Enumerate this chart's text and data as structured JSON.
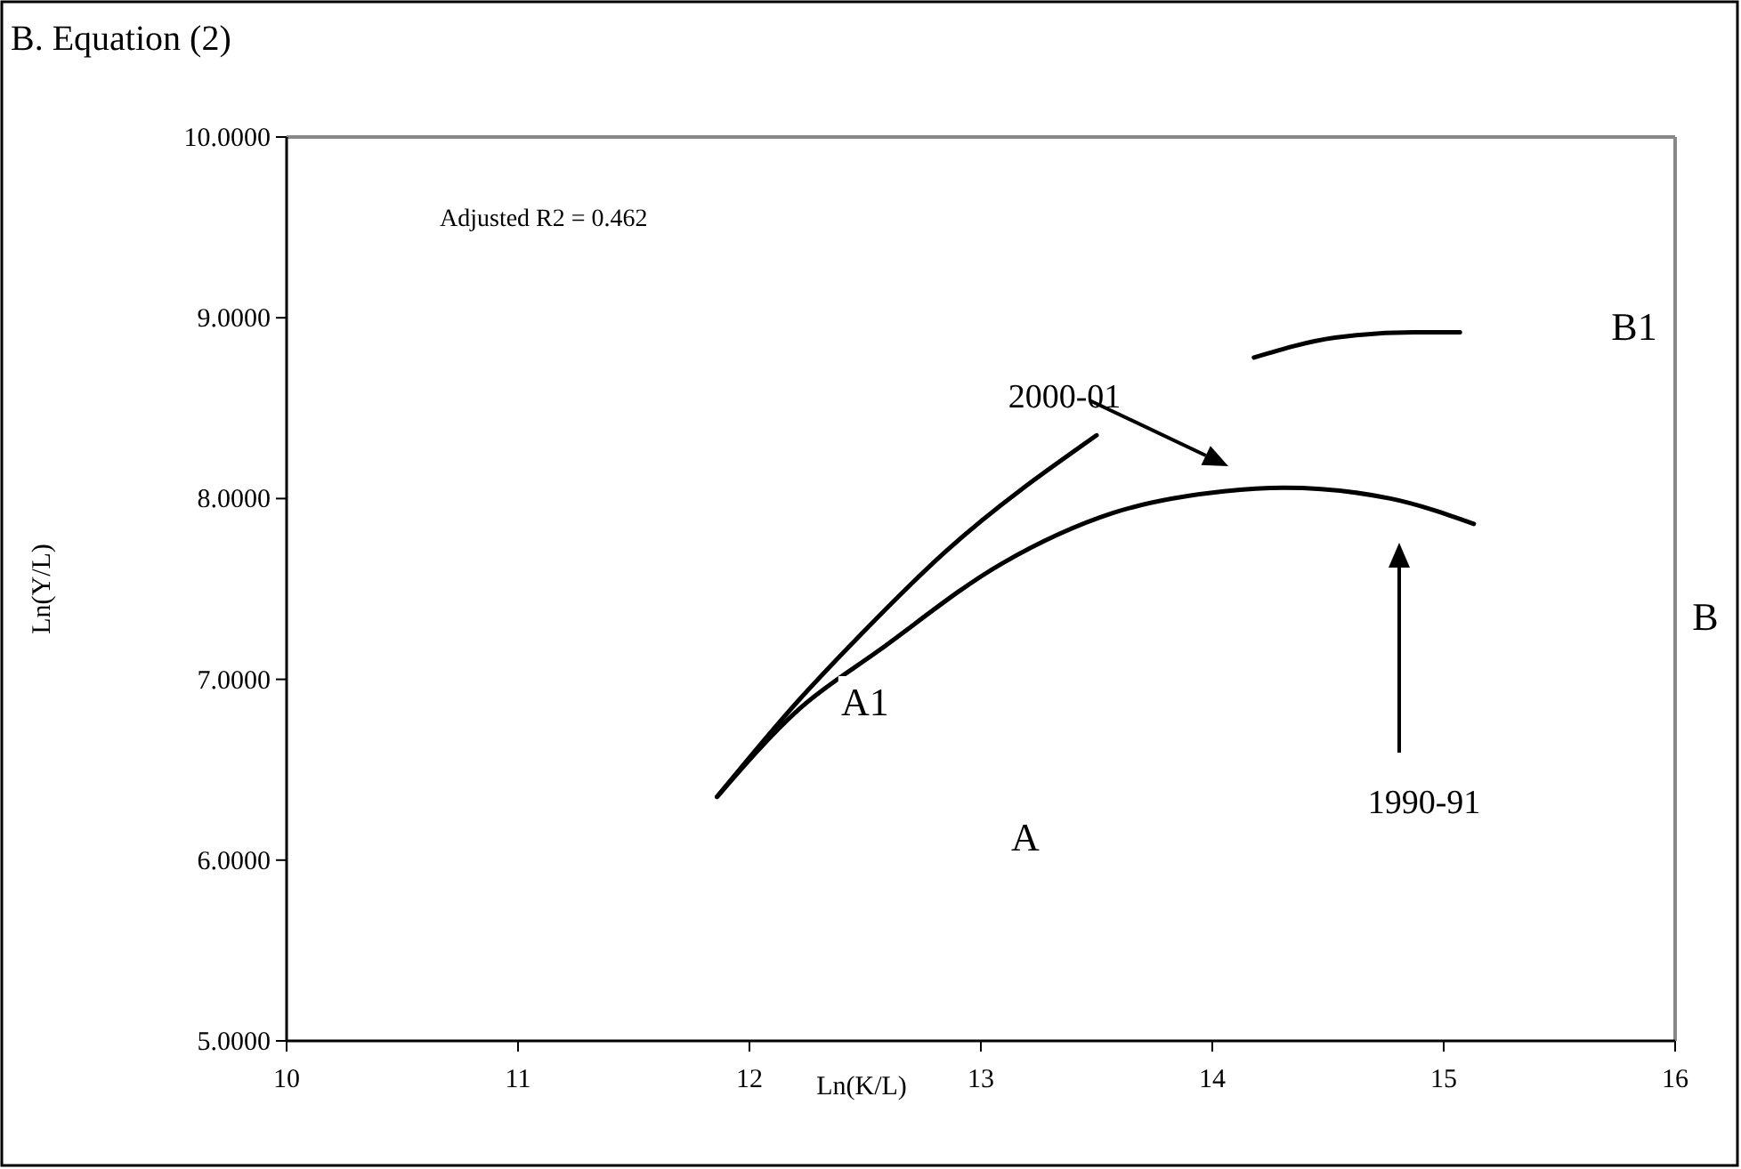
{
  "chart_data": {
    "type": "line",
    "title": "B. Equation (2)",
    "xlabel": "Ln(K/L)",
    "ylabel": "Ln(Y/L)",
    "xlim": [
      10,
      16
    ],
    "xticks": [
      10,
      11,
      12,
      13,
      14,
      15,
      16
    ],
    "ylim": [
      5,
      10
    ],
    "yticks": [
      {
        "value": 5,
        "label": "5.0000"
      },
      {
        "value": 6,
        "label": "6.0000"
      },
      {
        "value": 7,
        "label": "7.0000"
      },
      {
        "value": 8,
        "label": "8.0000"
      },
      {
        "value": 9,
        "label": "9.0000"
      },
      {
        "value": 10,
        "label": "10.0000"
      }
    ],
    "series": [
      {
        "color": "#000000",
        "x": [
          11.86,
          12.21,
          12.56,
          13.09,
          13.57,
          14.05,
          14.31,
          14.77,
          15.13
        ],
        "values": [
          6.35,
          6.83,
          7.16,
          7.64,
          7.92,
          8.04,
          8.06,
          8.0,
          7.86
        ]
      },
      {
        "color": "#000000",
        "x": [
          11.86,
          12.21,
          12.43,
          12.85,
          13.5,
          13.8,
          14.18,
          14.53,
          14.87,
          15.07
        ],
        "values": [
          6.35,
          6.88,
          7.18,
          7.71,
          8.35,
          null,
          8.78,
          8.89,
          8.92,
          8.92
        ]
      }
    ],
    "annotations": [
      "Adjusted R2 = 0.462",
      "2000-01",
      "1990-91",
      "A1",
      "A",
      "B1",
      "B"
    ]
  }
}
